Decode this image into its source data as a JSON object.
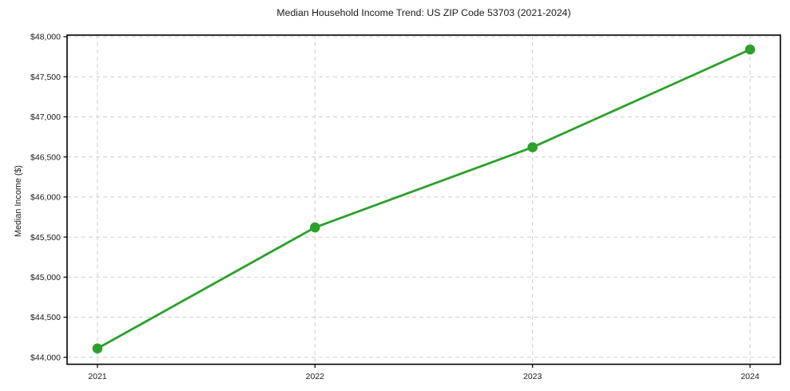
{
  "chart_data": {
    "type": "line",
    "title": "Median Household Income Trend: US ZIP Code 53703 (2021-2024)",
    "xlabel": "",
    "ylabel": "Median Income ($)",
    "categories": [
      "2021",
      "2022",
      "2023",
      "2024"
    ],
    "values": [
      44110,
      45620,
      46620,
      47840
    ],
    "y_ticks": [
      44000,
      44500,
      45000,
      45500,
      46000,
      46500,
      47000,
      47500,
      48000
    ],
    "y_tick_labels": [
      "$44,000",
      "$44,500",
      "$45,000",
      "$45,500",
      "$46,000",
      "$46,500",
      "$47,000",
      "$47,500",
      "$48,000"
    ],
    "ylim": [
      43910,
      48030
    ],
    "grid": {
      "horizontal": true,
      "vertical": true,
      "style": "dashed"
    },
    "legend": "none",
    "colors": {
      "line": "#2ca02c",
      "marker": "#2ca02c",
      "grid": "#cdcdcd",
      "axis": "#000000",
      "text": "#1a1a1a",
      "background": "#ffffff"
    }
  }
}
